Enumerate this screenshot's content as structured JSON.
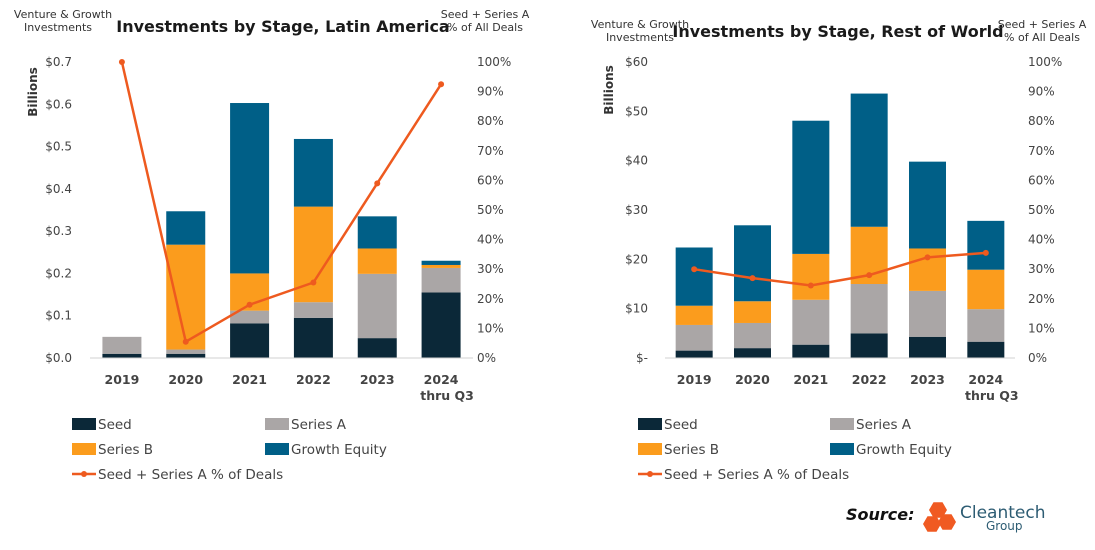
{
  "colors": {
    "seed": "#0b2838",
    "series_a": "#aaa6a6",
    "series_b": "#fb9c1d",
    "growth": "#005f87",
    "line": "#ee5a1f",
    "logo": "#f05a22"
  },
  "source": {
    "label": "Source:",
    "brand": "Cleantech",
    "brand_sub": "Group"
  },
  "chart_data": [
    {
      "type": "bar",
      "stacked": true,
      "title": "Investments by Stage, Latin America",
      "corner_left": [
        "Venture & Growth",
        "Investments"
      ],
      "corner_right": [
        "Seed + Series A",
        "% of All Deals"
      ],
      "ylabel": "Billions",
      "ylim": [
        0,
        0.7
      ],
      "y_ticks": [
        "$0.0",
        "$0.1",
        "$0.2",
        "$0.3",
        "$0.4",
        "$0.5",
        "$0.6",
        "$0.7"
      ],
      "y2lim": [
        0,
        100
      ],
      "y2_ticks": [
        "0%",
        "10%",
        "20%",
        "30%",
        "40%",
        "50%",
        "60%",
        "70%",
        "80%",
        "90%",
        "100%"
      ],
      "categories": [
        [
          "2019"
        ],
        [
          "2020"
        ],
        [
          "2021"
        ],
        [
          "2022"
        ],
        [
          "2023"
        ],
        [
          "2024",
          "thru Q3"
        ]
      ],
      "series": [
        {
          "name": "Seed",
          "values": [
            0.01,
            0.01,
            0.082,
            0.095,
            0.047,
            0.155
          ]
        },
        {
          "name": "Series A",
          "values": [
            0.04,
            0.01,
            0.03,
            0.037,
            0.152,
            0.058
          ]
        },
        {
          "name": "Series B",
          "values": [
            0.0,
            0.248,
            0.088,
            0.226,
            0.06,
            0.007
          ]
        },
        {
          "name": "Growth Equity",
          "values": [
            0.0,
            0.079,
            0.403,
            0.16,
            0.076,
            0.01
          ]
        }
      ],
      "line": {
        "name": "Seed + Series A % of Deals",
        "values": [
          100,
          5.5,
          18,
          25.5,
          59,
          92.5
        ]
      }
    },
    {
      "type": "bar",
      "stacked": true,
      "title": "Investments by Stage, Rest of World",
      "corner_left": [
        "Venture & Growth",
        "Investments"
      ],
      "corner_right": [
        "Seed + Series A",
        "% of All Deals"
      ],
      "ylabel": "Billions",
      "ylim": [
        0,
        60
      ],
      "y_ticks": [
        "$-",
        "$10",
        "$20",
        "$30",
        "$40",
        "$50",
        "$60"
      ],
      "y2lim": [
        0,
        100
      ],
      "y2_ticks": [
        "0%",
        "10%",
        "20%",
        "30%",
        "40%",
        "50%",
        "60%",
        "70%",
        "80%",
        "90%",
        "100%"
      ],
      "categories": [
        [
          "2019"
        ],
        [
          "2020"
        ],
        [
          "2021"
        ],
        [
          "2022"
        ],
        [
          "2023"
        ],
        [
          "2024",
          "thru Q3"
        ]
      ],
      "series": [
        {
          "name": "Seed",
          "values": [
            1.5,
            2.0,
            2.7,
            5.0,
            4.3,
            3.3
          ]
        },
        {
          "name": "Series A",
          "values": [
            5.2,
            5.1,
            9.1,
            10.0,
            9.3,
            6.6
          ]
        },
        {
          "name": "Series B",
          "values": [
            3.9,
            4.4,
            9.3,
            11.6,
            8.6,
            8.0
          ]
        },
        {
          "name": "Growth Equity",
          "values": [
            11.8,
            15.4,
            27.0,
            27.0,
            17.6,
            9.9
          ]
        }
      ],
      "line": {
        "name": "Seed + Series A % of Deals",
        "values": [
          30,
          27,
          24.5,
          28,
          34,
          35.5
        ]
      }
    }
  ]
}
